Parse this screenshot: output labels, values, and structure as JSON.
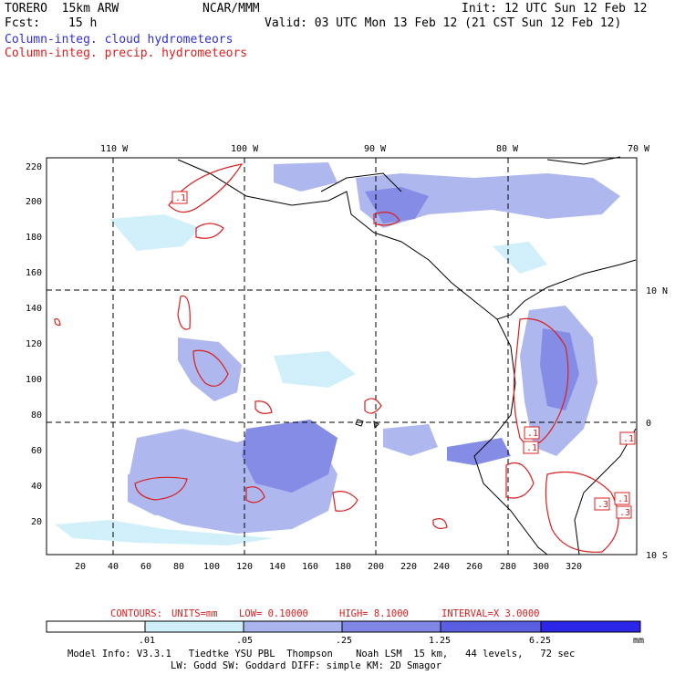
{
  "header": {
    "model": "TORERO  15km ARW",
    "org": "NCAR/MMM",
    "init": "Init: 12 UTC Sun 12 Feb 12",
    "fcst_label": "Fcst:",
    "fcst_value": "15 h",
    "valid": "Valid: 03 UTC Mon 13 Feb 12 (21 CST Sun 12 Feb 12)",
    "legend_cloud": "Column-integ. cloud hydrometeors",
    "legend_precip": "Column-integ. precip. hydrometeors"
  },
  "colors": {
    "cloud": "#3030d8",
    "precip": "#d82020",
    "shade_1": "#cfeffa",
    "shade_2": "#aab4ee",
    "shade_3": "#7f86e4",
    "shade_4": "#5a5ee2",
    "shade_5": "#2b26e8"
  },
  "map": {
    "longitude_labels": [
      "110 W",
      "100 W",
      "90 W",
      "80 W",
      "70 W"
    ],
    "latitude_labels": [
      "10 N",
      "0",
      "10 S"
    ],
    "y_grid_labels": [
      "220",
      "200",
      "180",
      "160",
      "140",
      "120",
      "100",
      "80",
      "60",
      "40",
      "20"
    ],
    "x_grid_labels": [
      "20",
      "40",
      "60",
      "80",
      "100",
      "120",
      "140",
      "160",
      "180",
      "200",
      "220",
      "240",
      "260",
      "280",
      "300",
      "320"
    ],
    "contour_labels": [
      ".1",
      ".1",
      ".1",
      ".1",
      ".1",
      ".3",
      ".3"
    ]
  },
  "contour_info": {
    "label": "CONTOURS:",
    "units": "UNITS=mm",
    "low": "LOW= 0.10000",
    "high": "HIGH=  8.1000",
    "interval": "INTERVAL=X  3.0000"
  },
  "colorbar": {
    "ticks": [
      ".01",
      ".05",
      ".25",
      "1.25",
      "6.25"
    ],
    "unit": "mm"
  },
  "footer": {
    "line1": "Model Info: V3.3.1   Tiedtke YSU PBL  Thompson    Noah LSM  15 km,   44 levels,   72 sec",
    "line2": "LW: Godd SW: Goddard DIFF: simple KM: 2D Smagor"
  }
}
